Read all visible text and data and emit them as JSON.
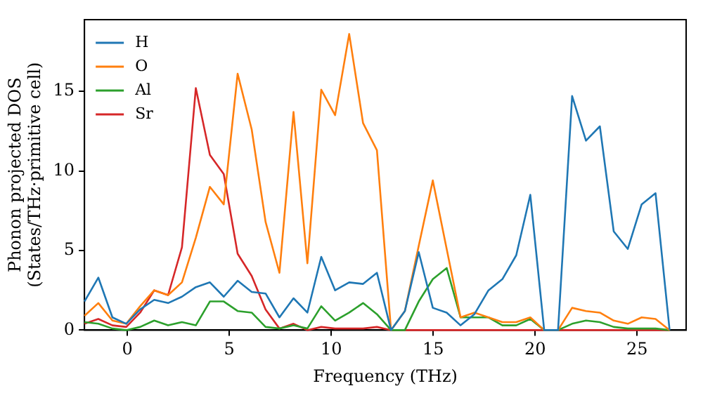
{
  "chart_data": {
    "type": "line",
    "xlabel": "Frequency (THz)",
    "ylabel": "Phonon projected DOS\n(States/THz·primitive cell)",
    "x": [
      -2.1,
      -1.42,
      -0.73,
      -0.05,
      0.63,
      1.32,
      2.0,
      2.68,
      3.36,
      4.05,
      4.73,
      5.41,
      6.1,
      6.78,
      7.46,
      8.15,
      8.83,
      9.51,
      10.19,
      10.88,
      11.56,
      12.24,
      12.93,
      13.61,
      14.29,
      14.98,
      15.66,
      16.34,
      17.02,
      17.71,
      18.39,
      19.07,
      19.76,
      20.44,
      21.12,
      21.81,
      22.49,
      23.17,
      23.85,
      24.54,
      25.22,
      25.9,
      26.59
    ],
    "series": [
      {
        "name": "H",
        "color": "#1f77b4",
        "values": [
          1.8,
          3.3,
          0.8,
          0.4,
          1.3,
          1.9,
          1.7,
          2.1,
          2.7,
          3.0,
          2.1,
          3.1,
          2.4,
          2.3,
          0.8,
          2.0,
          1.1,
          4.6,
          2.5,
          3.0,
          2.9,
          3.6,
          0,
          1.2,
          4.9,
          1.4,
          1.1,
          0.3,
          1.0,
          2.5,
          3.2,
          4.7,
          8.5,
          0,
          0,
          14.7,
          11.9,
          12.8,
          6.2,
          5.1,
          7.9,
          8.6,
          0
        ]
      },
      {
        "name": "O",
        "color": "#ff7f0e",
        "values": [
          0.9,
          1.7,
          0.6,
          0.4,
          1.5,
          2.5,
          2.2,
          3.0,
          5.8,
          9.0,
          7.9,
          16.1,
          12.6,
          6.8,
          3.6,
          13.7,
          4.2,
          15.1,
          13.5,
          18.6,
          13.0,
          11.3,
          0,
          1.2,
          5.3,
          9.4,
          5.1,
          0.8,
          1.1,
          0.8,
          0.5,
          0.5,
          0.8,
          0,
          0,
          1.4,
          1.2,
          1.1,
          0.6,
          0.4,
          0.8,
          0.7,
          0
        ]
      },
      {
        "name": "Al",
        "color": "#2ca02c",
        "values": [
          0.5,
          0.4,
          0.1,
          0.0,
          0.2,
          0.6,
          0.3,
          0.5,
          0.3,
          1.8,
          1.8,
          1.2,
          1.1,
          0.2,
          0.1,
          0.3,
          0.1,
          1.5,
          0.6,
          1.1,
          1.7,
          1.0,
          0,
          0,
          1.8,
          3.2,
          3.9,
          0.8,
          0.8,
          0.8,
          0.3,
          0.3,
          0.7,
          0,
          0,
          0.4,
          0.6,
          0.5,
          0.2,
          0.1,
          0.1,
          0.1,
          0
        ]
      },
      {
        "name": "Sr",
        "color": "#d62728",
        "values": [
          0.4,
          0.7,
          0.3,
          0.2,
          1.1,
          2.5,
          2.2,
          5.2,
          15.2,
          11.0,
          9.8,
          4.8,
          3.4,
          1.3,
          0.1,
          0.4,
          0,
          0.2,
          0.1,
          0.1,
          0.1,
          0.2,
          0,
          0,
          0,
          0,
          0,
          0,
          0,
          0,
          0,
          0,
          0,
          0,
          0,
          0,
          0,
          0,
          0,
          0,
          0,
          0,
          0
        ]
      }
    ],
    "xlim": [
      -2.1,
      27.4
    ],
    "xticks": [
      0,
      5,
      10,
      15,
      20,
      25
    ],
    "ylim": [
      0,
      19.5
    ],
    "yticks": [
      0,
      5,
      10,
      15
    ],
    "grid": false,
    "legend": "top left",
    "marker": "none",
    "line_style": "solid"
  }
}
